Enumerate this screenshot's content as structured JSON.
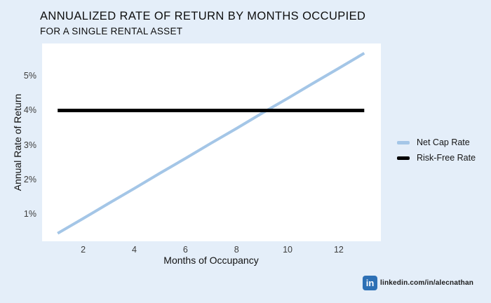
{
  "page": {
    "background": "#e4eef9",
    "plot_background": "#ffffff"
  },
  "title": "ANNUALIZED RATE OF RETURN BY MONTHS OCCUPIED",
  "subtitle": "FOR A SINGLE RENTAL ASSET",
  "chart_data": {
    "type": "line",
    "title": "ANNUALIZED RATE OF RETURN BY MONTHS OCCUPIED",
    "subtitle": "FOR A SINGLE RENTAL ASSET",
    "x": [
      1,
      2,
      3,
      4,
      5,
      6,
      7,
      8,
      9,
      10,
      11,
      12,
      13
    ],
    "series": [
      {
        "name": "Net Cap Rate",
        "color": "#a4c6e7",
        "stroke_width": 4,
        "values": [
          0.44,
          0.87,
          1.31,
          1.74,
          2.18,
          2.61,
          3.05,
          3.48,
          3.92,
          4.35,
          4.79,
          5.22,
          5.66
        ]
      },
      {
        "name": "Risk-Free Rate",
        "color": "#000000",
        "stroke_width": 5,
        "values": [
          4,
          4,
          4,
          4,
          4,
          4,
          4,
          4,
          4,
          4,
          4,
          4,
          4
        ]
      }
    ],
    "xlabel": "Months of Occupancy",
    "ylabel": "Annual Rate of Return",
    "x_ticks": [
      2,
      4,
      6,
      8,
      10,
      12
    ],
    "y_ticks": [
      1,
      2,
      3,
      4,
      5
    ],
    "y_tick_suffix": "%",
    "xlim": [
      0.39,
      13.65
    ],
    "ylim": [
      0.21,
      5.94
    ],
    "grid": false,
    "legend_position": "right"
  },
  "footer": {
    "linkedin_icon_text": "in",
    "linkedin_text": "linkedin.com/in/alecnathan",
    "linkedin_color": "#2d70b5"
  }
}
